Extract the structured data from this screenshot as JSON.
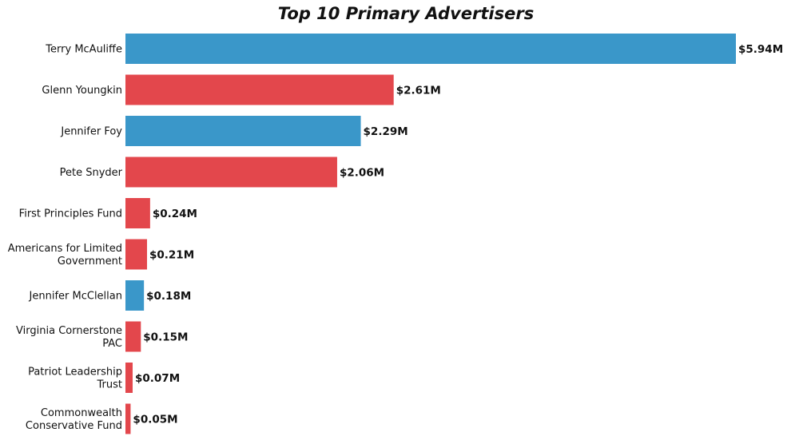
{
  "chart_data": {
    "type": "bar",
    "orientation": "horizontal",
    "title": "Top 10 Primary Advertisers",
    "xlabel": "",
    "ylabel": "",
    "grid": false,
    "legend": "none",
    "xlim": [
      0,
      5.94
    ],
    "categories": [
      [
        "Terry McAuliffe"
      ],
      [
        "Glenn Youngkin"
      ],
      [
        "Jennifer Foy"
      ],
      [
        "Pete Snyder"
      ],
      [
        "First Principles Fund"
      ],
      [
        "Americans for Limited",
        "Government"
      ],
      [
        "Jennifer McClellan"
      ],
      [
        "Virginia Cornerstone",
        "PAC"
      ],
      [
        "Patriot Leadership",
        "Trust"
      ],
      [
        "Commonwealth",
        "Conservative Fund"
      ]
    ],
    "values": [
      5.94,
      2.61,
      2.29,
      2.06,
      0.24,
      0.21,
      0.18,
      0.15,
      0.07,
      0.05
    ],
    "value_labels": [
      "$5.94M",
      "$2.61M",
      "$2.29M",
      "$2.06M",
      "$0.24M",
      "$0.21M",
      "$0.18M",
      "$0.15M",
      "$0.07M",
      "$0.05M"
    ],
    "bar_colors": [
      "#3a97c9",
      "#e3474c",
      "#3a97c9",
      "#e3474c",
      "#e3474c",
      "#e3474c",
      "#3a97c9",
      "#e3474c",
      "#e3474c",
      "#e3474c"
    ]
  }
}
